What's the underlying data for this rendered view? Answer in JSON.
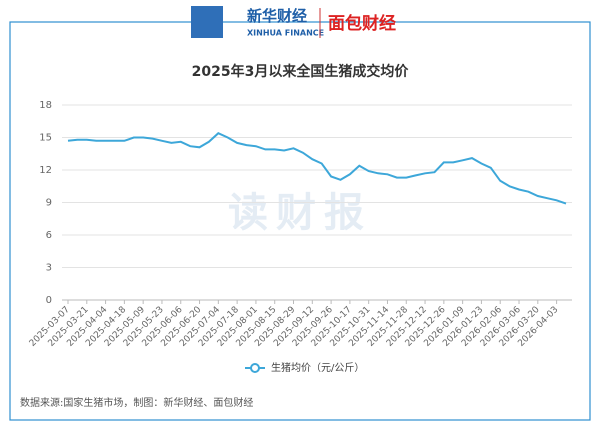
{
  "header": {
    "logo_left": "新华财经",
    "logo_left_en": "XINHUA FINANCE",
    "logo_right": "面包财经"
  },
  "watermark": "读财报",
  "source": "数据来源:国家生猪市场，制图：新华财经、面包财经",
  "chart_data": {
    "type": "line",
    "title": "2025年3月以来全国生猪成交均价",
    "categories": [
      "2025-03-07",
      null,
      "2025-03-21",
      null,
      "2025-04-04",
      null,
      "2025-04-18",
      null,
      "2025-05-09",
      null,
      "2025-05-23",
      null,
      "2025-06-06",
      null,
      "2025-06-20",
      null,
      "2025-07-04",
      null,
      "2025-07-18",
      null,
      "2025-08-01",
      null,
      "2025-08-15",
      null,
      "2025-08-29",
      null,
      "2025-09-12",
      null,
      "2025-09-26",
      null,
      "2025-10-17",
      null,
      "2025-10-31",
      null,
      "2025-11-14",
      null,
      "2025-11-28",
      null,
      "2025-12-12",
      null,
      "2025-12-26",
      null,
      "2026-01-09",
      null,
      "2026-01-23",
      null,
      "2026-02-06",
      null,
      "2026-03-06",
      null,
      "2026-03-20",
      null,
      "2026-04-03",
      null
    ],
    "series": [
      {
        "name": "生猪均价（元/公斤）",
        "color": "#3da7d9",
        "values": [
          14.7,
          14.8,
          14.8,
          14.7,
          14.7,
          14.7,
          14.7,
          15.0,
          15.0,
          14.9,
          14.7,
          14.5,
          14.6,
          14.2,
          14.1,
          14.6,
          15.4,
          15.0,
          14.5,
          14.3,
          14.2,
          13.9,
          13.9,
          13.8,
          14.0,
          13.6,
          13.0,
          12.6,
          11.4,
          11.1,
          11.6,
          12.4,
          11.9,
          11.7,
          11.6,
          11.3,
          11.3,
          11.5,
          11.7,
          11.8,
          12.7,
          12.7,
          12.9,
          13.1,
          12.6,
          12.2,
          11.0,
          10.5,
          10.2,
          10.0,
          9.6,
          9.4,
          9.2,
          8.9
        ]
      }
    ],
    "ylim": [
      0,
      18
    ],
    "yticks": [
      0,
      3,
      6,
      9,
      12,
      15,
      18
    ],
    "grid": true,
    "legend": "bottom"
  }
}
